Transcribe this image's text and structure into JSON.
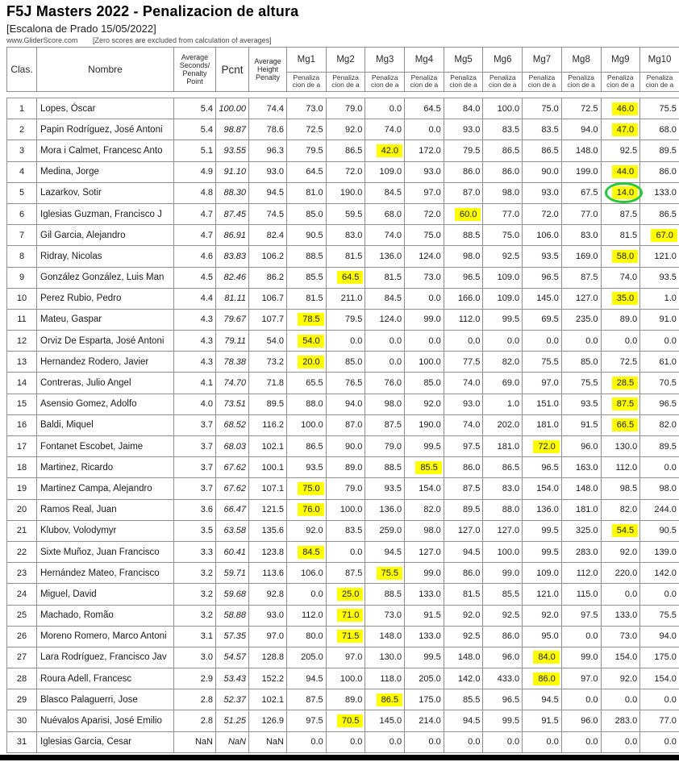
{
  "title": "F5J Masters 2022 - Penalizacion de altura",
  "subtitle": "[Escalona de Prado 15/05/2022]",
  "source": "www.GliderScore.com",
  "note": "[Zero scores are excluded from calculation of averages]",
  "colors": {
    "highlight": "#ffff00",
    "circle": "#29c53e",
    "border": "#8f8f8f"
  },
  "table": {
    "headers": {
      "clas": "Clas.",
      "nombre": "Nombre",
      "avg_seconds": "Average\nSeconds/\nPenalty\nPoint",
      "pcnt": "Pcnt",
      "avg_height": "Average\nHeight\nPenalty",
      "mg": [
        "Mg1",
        "Mg2",
        "Mg3",
        "Mg4",
        "Mg5",
        "Mg6",
        "Mg7",
        "Mg8",
        "Mg9",
        "Mg10"
      ],
      "mg_sub": "Penaliza\ncion de a"
    },
    "rows": [
      {
        "clas": "1",
        "nombre": "Lopes, Óscar",
        "avg_seconds": "5.4",
        "pcnt": "100.00",
        "avg_height": "74.4",
        "mg": [
          "73.0",
          "79.0",
          "0.0",
          "64.5",
          "84.0",
          "100.0",
          "75.0",
          "72.5",
          "46.0",
          "75.5"
        ],
        "highlight_mg": 9,
        "circled": false
      },
      {
        "clas": "2",
        "nombre": "Papin Rodríguez, José Antoni",
        "avg_seconds": "5.4",
        "pcnt": "98.87",
        "avg_height": "78.6",
        "mg": [
          "72.5",
          "92.0",
          "74.0",
          "0.0",
          "93.0",
          "83.5",
          "83.5",
          "94.0",
          "47.0",
          "68.0"
        ],
        "highlight_mg": 9,
        "circled": false
      },
      {
        "clas": "3",
        "nombre": "Mora i Calmet, Francesc Anto",
        "avg_seconds": "5.1",
        "pcnt": "93.55",
        "avg_height": "96.3",
        "mg": [
          "79.5",
          "86.5",
          "42.0",
          "172.0",
          "79.5",
          "86.5",
          "86.5",
          "148.0",
          "92.5",
          "89.5"
        ],
        "highlight_mg": 3,
        "circled": false
      },
      {
        "clas": "4",
        "nombre": "Medina, Jorge",
        "avg_seconds": "4.9",
        "pcnt": "91.10",
        "avg_height": "93.0",
        "mg": [
          "64.5",
          "72.0",
          "109.0",
          "93.0",
          "86.0",
          "86.0",
          "90.0",
          "199.0",
          "44.0",
          "86.0"
        ],
        "highlight_mg": 9,
        "circled": false
      },
      {
        "clas": "5",
        "nombre": "Lazarkov, Sotir",
        "avg_seconds": "4.8",
        "pcnt": "88.30",
        "avg_height": "94.5",
        "mg": [
          "81.0",
          "190.0",
          "84.5",
          "97.0",
          "87.0",
          "98.0",
          "93.0",
          "67.5",
          "14.0",
          "133.0"
        ],
        "highlight_mg": 9,
        "circled": true
      },
      {
        "clas": "6",
        "nombre": "Iglesias Guzman, Francisco J",
        "avg_seconds": "4.7",
        "pcnt": "87.45",
        "avg_height": "74.5",
        "mg": [
          "85.0",
          "59.5",
          "68.0",
          "72.0",
          "60.0",
          "77.0",
          "72.0",
          "77.0",
          "87.5",
          "86.5"
        ],
        "highlight_mg": 5,
        "circled": false
      },
      {
        "clas": "7",
        "nombre": "Gil Garcia, Alejandro",
        "avg_seconds": "4.7",
        "pcnt": "86.91",
        "avg_height": "82.4",
        "mg": [
          "90.5",
          "83.0",
          "74.0",
          "75.0",
          "88.5",
          "75.0",
          "106.0",
          "83.0",
          "81.5",
          "67.0"
        ],
        "highlight_mg": 10,
        "circled": false
      },
      {
        "clas": "8",
        "nombre": "Ridray, Nicolas",
        "avg_seconds": "4.6",
        "pcnt": "83.83",
        "avg_height": "106.2",
        "mg": [
          "88.5",
          "81.5",
          "136.0",
          "124.0",
          "98.0",
          "92.5",
          "93.5",
          "169.0",
          "58.0",
          "121.0"
        ],
        "highlight_mg": 9,
        "circled": false
      },
      {
        "clas": "9",
        "nombre": "González González, Luis Man",
        "avg_seconds": "4.5",
        "pcnt": "82.46",
        "avg_height": "86.2",
        "mg": [
          "85.5",
          "64.5",
          "81.5",
          "73.0",
          "96.5",
          "109.0",
          "96.5",
          "87.5",
          "74.0",
          "93.5"
        ],
        "highlight_mg": 2,
        "circled": false
      },
      {
        "clas": "10",
        "nombre": "Perez Rubio, Pedro",
        "avg_seconds": "4.4",
        "pcnt": "81.11",
        "avg_height": "106.7",
        "mg": [
          "81.5",
          "211.0",
          "84.5",
          "0.0",
          "166.0",
          "109.0",
          "145.0",
          "127.0",
          "35.0",
          "1.0"
        ],
        "highlight_mg": 9,
        "circled": false
      },
      {
        "clas": "11",
        "nombre": "Mateu, Gaspar",
        "avg_seconds": "4.3",
        "pcnt": "79.67",
        "avg_height": "107.7",
        "mg": [
          "78.5",
          "79.5",
          "124.0",
          "99.0",
          "112.0",
          "99.5",
          "69.5",
          "235.0",
          "89.0",
          "91.0"
        ],
        "highlight_mg": 1,
        "circled": false
      },
      {
        "clas": "12",
        "nombre": "Orviz De Esparta, José Antoni",
        "avg_seconds": "4.3",
        "pcnt": "79.11",
        "avg_height": "54.0",
        "mg": [
          "54.0",
          "0.0",
          "0.0",
          "0.0",
          "0.0",
          "0.0",
          "0.0",
          "0.0",
          "0.0",
          "0.0"
        ],
        "highlight_mg": 1,
        "circled": false
      },
      {
        "clas": "13",
        "nombre": "Hernandez Rodero, Javier",
        "avg_seconds": "4.3",
        "pcnt": "78.38",
        "avg_height": "73.2",
        "mg": [
          "20.0",
          "85.0",
          "0.0",
          "100.0",
          "77.5",
          "82.0",
          "75.5",
          "85.0",
          "72.5",
          "61.0"
        ],
        "highlight_mg": 1,
        "circled": false
      },
      {
        "clas": "14",
        "nombre": "Contreras, Julio Angel",
        "avg_seconds": "4.1",
        "pcnt": "74.70",
        "avg_height": "71.8",
        "mg": [
          "65.5",
          "76.5",
          "76.0",
          "85.0",
          "74.0",
          "69.0",
          "97.0",
          "75.5",
          "28.5",
          "70.5"
        ],
        "highlight_mg": 9,
        "circled": false
      },
      {
        "clas": "15",
        "nombre": "Asensio Gomez, Adolfo",
        "avg_seconds": "4.0",
        "pcnt": "73.51",
        "avg_height": "89.5",
        "mg": [
          "88.0",
          "94.0",
          "98.0",
          "92.0",
          "93.0",
          "1.0",
          "151.0",
          "93.5",
          "87.5",
          "96.5"
        ],
        "highlight_mg": 9,
        "circled": false
      },
      {
        "clas": "16",
        "nombre": "Baldi, Miquel",
        "avg_seconds": "3.7",
        "pcnt": "68.52",
        "avg_height": "116.2",
        "mg": [
          "100.0",
          "87.0",
          "87.5",
          "190.0",
          "74.0",
          "202.0",
          "181.0",
          "91.5",
          "66.5",
          "82.0"
        ],
        "highlight_mg": 9,
        "circled": false
      },
      {
        "clas": "17",
        "nombre": "Fontanet Escobet, Jaime",
        "avg_seconds": "3.7",
        "pcnt": "68.03",
        "avg_height": "102.1",
        "mg": [
          "86.5",
          "90.0",
          "79.0",
          "99.5",
          "97.5",
          "181.0",
          "72.0",
          "96.0",
          "130.0",
          "89.5"
        ],
        "highlight_mg": 7,
        "circled": false
      },
      {
        "clas": "18",
        "nombre": "Martinez, Ricardo",
        "avg_seconds": "3.7",
        "pcnt": "67.62",
        "avg_height": "100.1",
        "mg": [
          "93.5",
          "89.0",
          "88.5",
          "85.5",
          "86.0",
          "86.5",
          "96.5",
          "163.0",
          "112.0",
          "0.0"
        ],
        "highlight_mg": 4,
        "circled": false
      },
      {
        "clas": "19",
        "nombre": "Martinez Campa, Alejandro",
        "avg_seconds": "3.7",
        "pcnt": "67.62",
        "avg_height": "107.1",
        "mg": [
          "75.0",
          "79.0",
          "93.5",
          "154.0",
          "87.5",
          "83.0",
          "154.0",
          "148.0",
          "98.5",
          "98.0"
        ],
        "highlight_mg": 1,
        "circled": false
      },
      {
        "clas": "20",
        "nombre": "Ramos Real, Juan",
        "avg_seconds": "3.6",
        "pcnt": "66.47",
        "avg_height": "121.5",
        "mg": [
          "76.0",
          "100.0",
          "136.0",
          "82.0",
          "89.5",
          "88.0",
          "136.0",
          "181.0",
          "82.0",
          "244.0"
        ],
        "highlight_mg": 1,
        "circled": false
      },
      {
        "clas": "21",
        "nombre": "Klubov, Volodymyr",
        "avg_seconds": "3.5",
        "pcnt": "63.58",
        "avg_height": "135.6",
        "mg": [
          "92.0",
          "83.5",
          "259.0",
          "98.0",
          "127.0",
          "127.0",
          "99.5",
          "325.0",
          "54.5",
          "90.5"
        ],
        "highlight_mg": 9,
        "circled": false
      },
      {
        "clas": "22",
        "nombre": "Sixte Muñoz, Juan Francisco",
        "avg_seconds": "3.3",
        "pcnt": "60.41",
        "avg_height": "123.8",
        "mg": [
          "84.5",
          "0.0",
          "94.5",
          "127.0",
          "94.5",
          "100.0",
          "99.5",
          "283.0",
          "92.0",
          "139.0"
        ],
        "highlight_mg": 1,
        "circled": false
      },
      {
        "clas": "23",
        "nombre": "Hernández Mateo, Francisco",
        "avg_seconds": "3.2",
        "pcnt": "59.71",
        "avg_height": "113.6",
        "mg": [
          "106.0",
          "87.5",
          "75.5",
          "99.0",
          "86.0",
          "99.0",
          "109.0",
          "112.0",
          "220.0",
          "142.0"
        ],
        "highlight_mg": 3,
        "circled": false
      },
      {
        "clas": "24",
        "nombre": "Miguel, David",
        "avg_seconds": "3.2",
        "pcnt": "59.68",
        "avg_height": "92.8",
        "mg": [
          "0.0",
          "25.0",
          "88.5",
          "133.0",
          "81.5",
          "85.5",
          "121.0",
          "115.0",
          "0.0",
          "0.0"
        ],
        "highlight_mg": 2,
        "circled": false
      },
      {
        "clas": "25",
        "nombre": "Machado, Romão",
        "avg_seconds": "3.2",
        "pcnt": "58.88",
        "avg_height": "93.0",
        "mg": [
          "112.0",
          "71.0",
          "73.0",
          "91.5",
          "92.0",
          "92.5",
          "92.0",
          "97.5",
          "133.0",
          "75.5"
        ],
        "highlight_mg": 2,
        "circled": false
      },
      {
        "clas": "26",
        "nombre": "Moreno Romero, Marco Antoni",
        "avg_seconds": "3.1",
        "pcnt": "57.35",
        "avg_height": "97.0",
        "mg": [
          "80.0",
          "71.5",
          "148.0",
          "133.0",
          "92.5",
          "86.0",
          "95.0",
          "0.0",
          "73.0",
          "94.0"
        ],
        "highlight_mg": 2,
        "circled": false
      },
      {
        "clas": "27",
        "nombre": "Lara Rodríguez, Francisco Jav",
        "avg_seconds": "3.0",
        "pcnt": "54.57",
        "avg_height": "128.8",
        "mg": [
          "205.0",
          "97.0",
          "130.0",
          "99.5",
          "148.0",
          "96.0",
          "84.0",
          "99.0",
          "154.0",
          "175.0"
        ],
        "highlight_mg": 7,
        "circled": false
      },
      {
        "clas": "28",
        "nombre": "Roura Adell, Francesc",
        "avg_seconds": "2.9",
        "pcnt": "53.43",
        "avg_height": "152.2",
        "mg": [
          "94.5",
          "100.0",
          "118.0",
          "205.0",
          "142.0",
          "433.0",
          "86.0",
          "97.0",
          "92.0",
          "154.0"
        ],
        "highlight_mg": 7,
        "circled": false
      },
      {
        "clas": "29",
        "nombre": "Blasco Palaguerri, Jose",
        "avg_seconds": "2.8",
        "pcnt": "52.37",
        "avg_height": "102.1",
        "mg": [
          "87.5",
          "89.0",
          "86.5",
          "175.0",
          "85.5",
          "96.5",
          "94.5",
          "0.0",
          "0.0",
          "0.0"
        ],
        "highlight_mg": 3,
        "circled": false
      },
      {
        "clas": "30",
        "nombre": "Nuévalos Aparisi, José Emilio",
        "avg_seconds": "2.8",
        "pcnt": "51.25",
        "avg_height": "126.9",
        "mg": [
          "97.5",
          "70.5",
          "145.0",
          "214.0",
          "94.5",
          "99.5",
          "91.5",
          "96.0",
          "283.0",
          "77.0"
        ],
        "highlight_mg": 2,
        "circled": false
      },
      {
        "clas": "31",
        "nombre": "Iglesias Garcia, Cesar",
        "avg_seconds": "NaN",
        "pcnt": "NaN",
        "avg_height": "NaN",
        "mg": [
          "0.0",
          "0.0",
          "0.0",
          "0.0",
          "0.0",
          "0.0",
          "0.0",
          "0.0",
          "0.0",
          "0.0"
        ],
        "highlight_mg": 0,
        "circled": false
      }
    ]
  }
}
